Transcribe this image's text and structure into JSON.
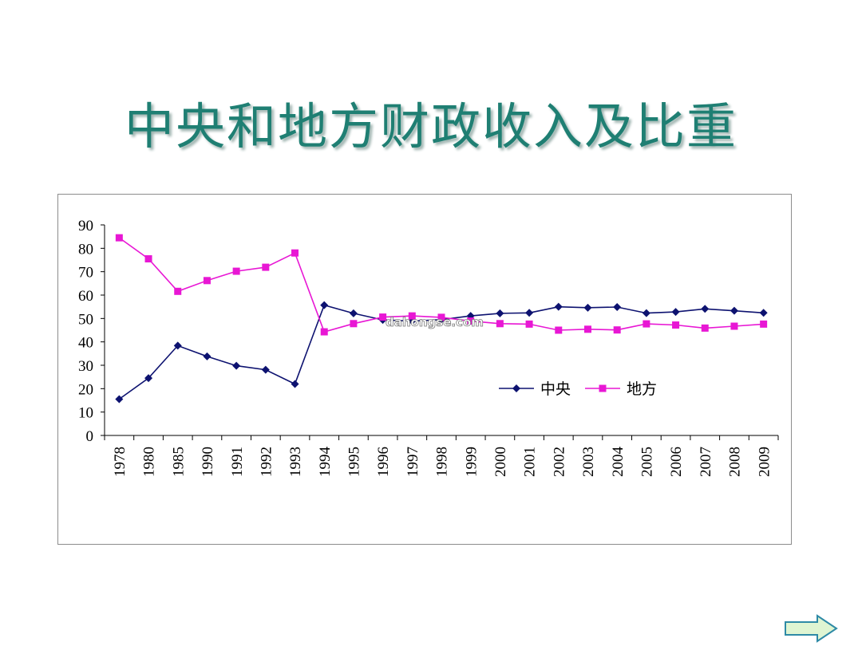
{
  "title": "中央和地方财政收入及比重",
  "watermark": "dahongse.com",
  "chart_data": {
    "type": "line",
    "x": [
      "1978",
      "1980",
      "1985",
      "1990",
      "1991",
      "1992",
      "1993",
      "1994",
      "1995",
      "1996",
      "1997",
      "1998",
      "1999",
      "2000",
      "2001",
      "2002",
      "2003",
      "2004",
      "2005",
      "2006",
      "2007",
      "2008",
      "2009"
    ],
    "series": [
      {
        "name": "中央",
        "color": "#0d1270",
        "marker": "diamond",
        "values": [
          15.5,
          24.5,
          38.4,
          33.8,
          29.8,
          28.1,
          22.0,
          55.7,
          52.2,
          49.4,
          48.9,
          49.5,
          51.1,
          52.2,
          52.4,
          55.0,
          54.6,
          54.9,
          52.3,
          52.8,
          54.1,
          53.3,
          52.4
        ]
      },
      {
        "name": "地方",
        "color": "#e817d4",
        "marker": "square",
        "values": [
          84.5,
          75.5,
          61.6,
          66.2,
          70.2,
          71.9,
          78.0,
          44.3,
          47.8,
          50.6,
          51.1,
          50.5,
          48.9,
          47.8,
          47.6,
          45.0,
          45.4,
          45.1,
          47.7,
          47.2,
          45.9,
          46.7,
          47.6
        ]
      }
    ],
    "ylim": [
      0,
      90
    ],
    "yticks": [
      "0",
      "10",
      "20",
      "30",
      "40",
      "50",
      "60",
      "70",
      "80",
      "90"
    ],
    "legend_position": "center-right",
    "grid": false
  }
}
